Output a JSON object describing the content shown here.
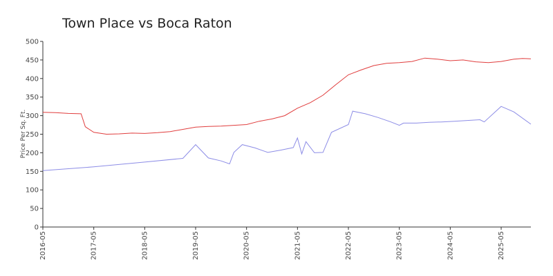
{
  "chart_data": {
    "type": "line",
    "title": "Town Place vs Boca Raton",
    "xlabel": "",
    "ylabel": "Price Per Sq. Ft.",
    "xlim": [
      "2016-05",
      "2025-12"
    ],
    "ylim": [
      0,
      500
    ],
    "yticks": [
      0,
      50,
      100,
      150,
      200,
      250,
      300,
      350,
      400,
      450,
      500
    ],
    "xticks": [
      "2016-05",
      "2017-05",
      "2018-05",
      "2019-05",
      "2020-05",
      "2021-05",
      "2022-05",
      "2023-05",
      "2024-05",
      "2025-05"
    ],
    "grid": false,
    "legend": "none",
    "series": [
      {
        "color": "#e03c3c",
        "points": [
          [
            "2016-05",
            309
          ],
          [
            "2016-08",
            308
          ],
          [
            "2016-11",
            306
          ],
          [
            "2017-02",
            305
          ],
          [
            "2017-03",
            270
          ],
          [
            "2017-05",
            255
          ],
          [
            "2017-08",
            250
          ],
          [
            "2017-11",
            251
          ],
          [
            "2018-02",
            253
          ],
          [
            "2018-05",
            252
          ],
          [
            "2018-08",
            254
          ],
          [
            "2018-11",
            257
          ],
          [
            "2019-02",
            263
          ],
          [
            "2019-05",
            269
          ],
          [
            "2019-08",
            271
          ],
          [
            "2019-11",
            272
          ],
          [
            "2020-02",
            274
          ],
          [
            "2020-05",
            276
          ],
          [
            "2020-08",
            285
          ],
          [
            "2020-11",
            291
          ],
          [
            "2021-02",
            300
          ],
          [
            "2021-05",
            320
          ],
          [
            "2021-08",
            335
          ],
          [
            "2021-11",
            355
          ],
          [
            "2022-02",
            383
          ],
          [
            "2022-05",
            410
          ],
          [
            "2022-08",
            423
          ],
          [
            "2022-11",
            435
          ],
          [
            "2023-02",
            441
          ],
          [
            "2023-05",
            443
          ],
          [
            "2023-08",
            446
          ],
          [
            "2023-11",
            455
          ],
          [
            "2024-02",
            452
          ],
          [
            "2024-05",
            448
          ],
          [
            "2024-08",
            450
          ],
          [
            "2024-11",
            445
          ],
          [
            "2025-02",
            443
          ],
          [
            "2025-05",
            446
          ],
          [
            "2025-08",
            452
          ],
          [
            "2025-10",
            454
          ],
          [
            "2025-12",
            453
          ]
        ]
      },
      {
        "color": "#8c8ce6",
        "points": [
          [
            "2016-05",
            152
          ],
          [
            "2017-05",
            162
          ],
          [
            "2018-05",
            175
          ],
          [
            "2019-02",
            185
          ],
          [
            "2019-05",
            222
          ],
          [
            "2019-08",
            186
          ],
          [
            "2019-11",
            178
          ],
          [
            "2020-01",
            170
          ],
          [
            "2020-02",
            201
          ],
          [
            "2020-04",
            222
          ],
          [
            "2020-07",
            213
          ],
          [
            "2020-10",
            201
          ],
          [
            "2021-01",
            207
          ],
          [
            "2021-04",
            214
          ],
          [
            "2021-05",
            240
          ],
          [
            "2021-06",
            197
          ],
          [
            "2021-07",
            230
          ],
          [
            "2021-09",
            200
          ],
          [
            "2021-11",
            201
          ],
          [
            "2022-01",
            255
          ],
          [
            "2022-05",
            276
          ],
          [
            "2022-06",
            312
          ],
          [
            "2022-09",
            305
          ],
          [
            "2022-12",
            295
          ],
          [
            "2023-03",
            283
          ],
          [
            "2023-05",
            274
          ],
          [
            "2023-06",
            280
          ],
          [
            "2023-09",
            280
          ],
          [
            "2023-12",
            282
          ],
          [
            "2024-03",
            283
          ],
          [
            "2024-06",
            285
          ],
          [
            "2024-09",
            287
          ],
          [
            "2024-12",
            289
          ],
          [
            "2025-01",
            283
          ],
          [
            "2025-05",
            325
          ],
          [
            "2025-08",
            310
          ],
          [
            "2025-12",
            277
          ]
        ]
      }
    ]
  }
}
